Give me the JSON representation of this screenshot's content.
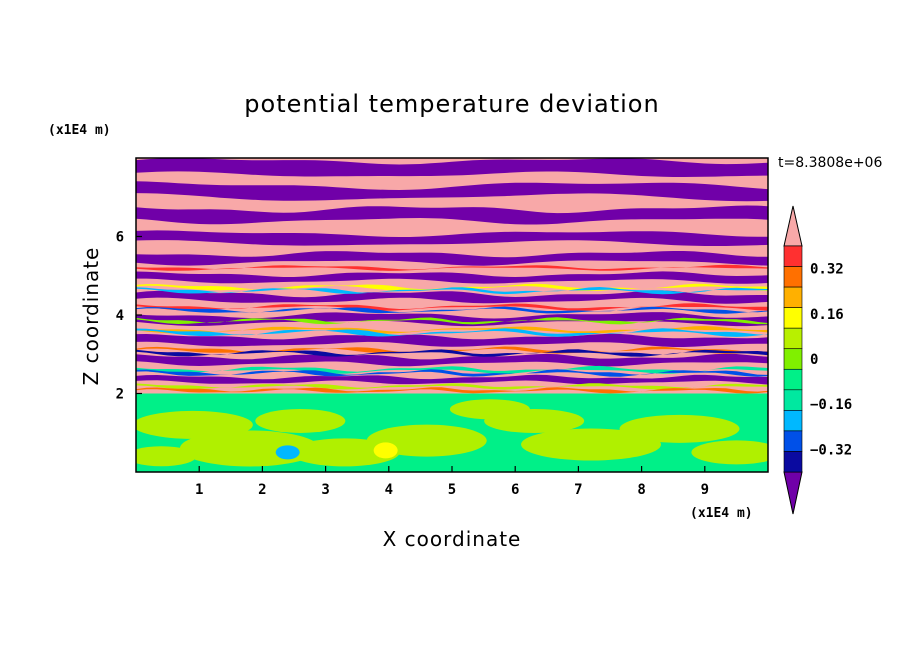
{
  "chart_data": {
    "type": "heatmap",
    "title": "potential temperature deviation",
    "xlabel": "X coordinate",
    "ylabel": "Z coordinate",
    "x_unit": "(x1E4 m)",
    "y_unit": "(x1E4 m)",
    "time_label": "t=8.3808e+06",
    "xlim": [
      0,
      10
    ],
    "ylim": [
      0,
      8
    ],
    "xticks": [
      "1",
      "2",
      "3",
      "4",
      "5",
      "6",
      "7",
      "8",
      "9"
    ],
    "yticks": [
      "2",
      "4",
      "6"
    ],
    "colorbar": {
      "levels": [
        -0.48,
        -0.4,
        -0.32,
        -0.24,
        -0.16,
        -0.08,
        0,
        0.08,
        0.16,
        0.24,
        0.32,
        0.4,
        0.48
      ],
      "tick_labels": [
        "0.32",
        "0.16",
        "0",
        "−0.16",
        "−0.32"
      ],
      "tick_values": [
        0.32,
        0.16,
        0,
        -0.16,
        -0.32
      ],
      "colors": [
        "#7000a8",
        "#0a0aa0",
        "#0050e8",
        "#00b8ff",
        "#00e8a0",
        "#00f088",
        "#80f000",
        "#b8f000",
        "#ffff00",
        "#ffb000",
        "#ff7000",
        "#ff3030",
        "#f8a8a8"
      ],
      "extend": "both"
    },
    "colors": {
      "purple": "#7000a8",
      "pink": "#f8a8a8",
      "green_low": "#00f088",
      "yellowgreen": "#b0f000"
    }
  }
}
